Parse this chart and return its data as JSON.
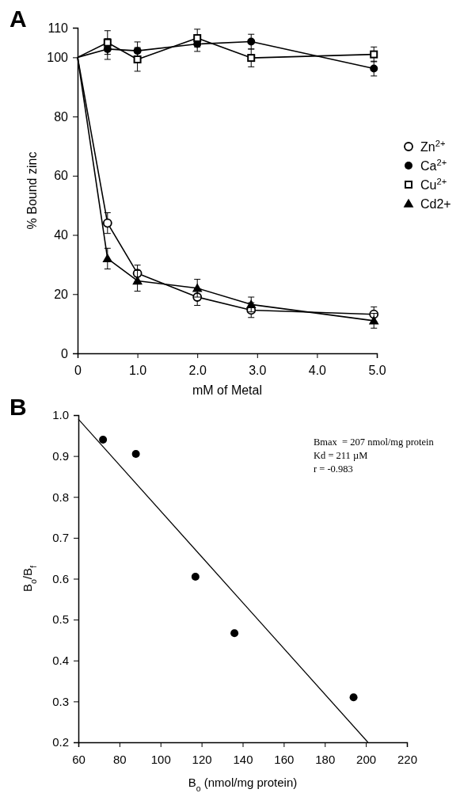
{
  "chart_data": [
    {
      "type": "line",
      "title": "A",
      "xlabel": "mM of Metal",
      "ylabel": "% Bound zinc",
      "x": [
        0,
        0.5,
        1,
        2,
        2.9,
        4.95
      ],
      "xlim": [
        0,
        5
      ],
      "xticks": [
        0,
        {
          "value": 1,
          "label": "1.0"
        },
        {
          "value": 2,
          "label": "2.0"
        },
        {
          "value": 3,
          "label": "3.0"
        },
        {
          "value": 4,
          "label": "4.0"
        },
        {
          "value": 5,
          "label": "5.0"
        }
      ],
      "ylim": [
        0,
        110
      ],
      "yticks": [
        0,
        20,
        40,
        60,
        80,
        100,
        110
      ],
      "grid": false,
      "legend": "right",
      "series": [
        {
          "name": "Zn$^{2+}$",
          "color": "#ffffff",
          "marker": "circle",
          "values": [
            100,
            44,
            27,
            19,
            14.6,
            13.2
          ],
          "errors": [
            null,
            3.5,
            2.8,
            2.8,
            2.5,
            2.5
          ]
        },
        {
          "name": "Ca$^{2+}$",
          "color": "#000000",
          "marker": "circle",
          "values": [
            100,
            102.8,
            102.2,
            104.5,
            105.3,
            96.2
          ],
          "errors": [
            null,
            3.5,
            3,
            2.5,
            2.5,
            2.5
          ]
        },
        {
          "name": "Cu$^{2+}$",
          "color": "#ffffff",
          "marker": "square",
          "values": [
            100,
            105,
            99.3,
            106.5,
            99.8,
            101
          ],
          "errors": [
            null,
            4,
            4,
            3,
            3,
            2.5
          ]
        },
        {
          "name": "Cd2+",
          "color": "#000000",
          "marker": "triangle",
          "values": [
            100,
            32,
            24.5,
            22,
            16.5,
            11
          ],
          "errors": [
            null,
            3.5,
            3.5,
            3,
            2.5,
            2.5
          ]
        }
      ]
    },
    {
      "type": "scatter",
      "title": "B",
      "xlabel": "B$_{o}$ (nmol/mg protein)",
      "ylabel": "B$_{o}$/B$_{f}$",
      "xlim": [
        60,
        220
      ],
      "xticks": [
        60,
        80,
        100,
        120,
        140,
        160,
        180,
        200,
        220
      ],
      "ylim": [
        0.2,
        1.0
      ],
      "yticks": [
        {
          "value": 0.2,
          "label": "0.2"
        },
        {
          "value": 0.3,
          "label": "0.3"
        },
        {
          "value": 0.4,
          "label": "0.4"
        },
        {
          "value": 0.5,
          "label": "0.5"
        },
        {
          "value": 0.6,
          "label": "0.6"
        },
        {
          "value": 0.7,
          "label": "0.7"
        },
        {
          "value": 0.8,
          "label": "0.8"
        },
        {
          "value": 0.9,
          "label": "0.9"
        },
        {
          "value": 1.0,
          "label": "1.0"
        }
      ],
      "grid": false,
      "annotations": [
        "Bmax  = 207 nmol/mg protein",
        "Kd = 211 µM",
        "r = -0.983"
      ],
      "series": [
        {
          "type": "scatter",
          "color": "#000000",
          "marker": "circle",
          "x": [
            72,
            88,
            117,
            136,
            194
          ],
          "values": [
            0.94,
            0.905,
            0.605,
            0.467,
            0.31
          ]
        },
        {
          "type": "line",
          "color": "#000000",
          "marker": "none",
          "x": [
            60,
            201
          ],
          "values": [
            0.99,
            0.2
          ]
        }
      ]
    }
  ]
}
